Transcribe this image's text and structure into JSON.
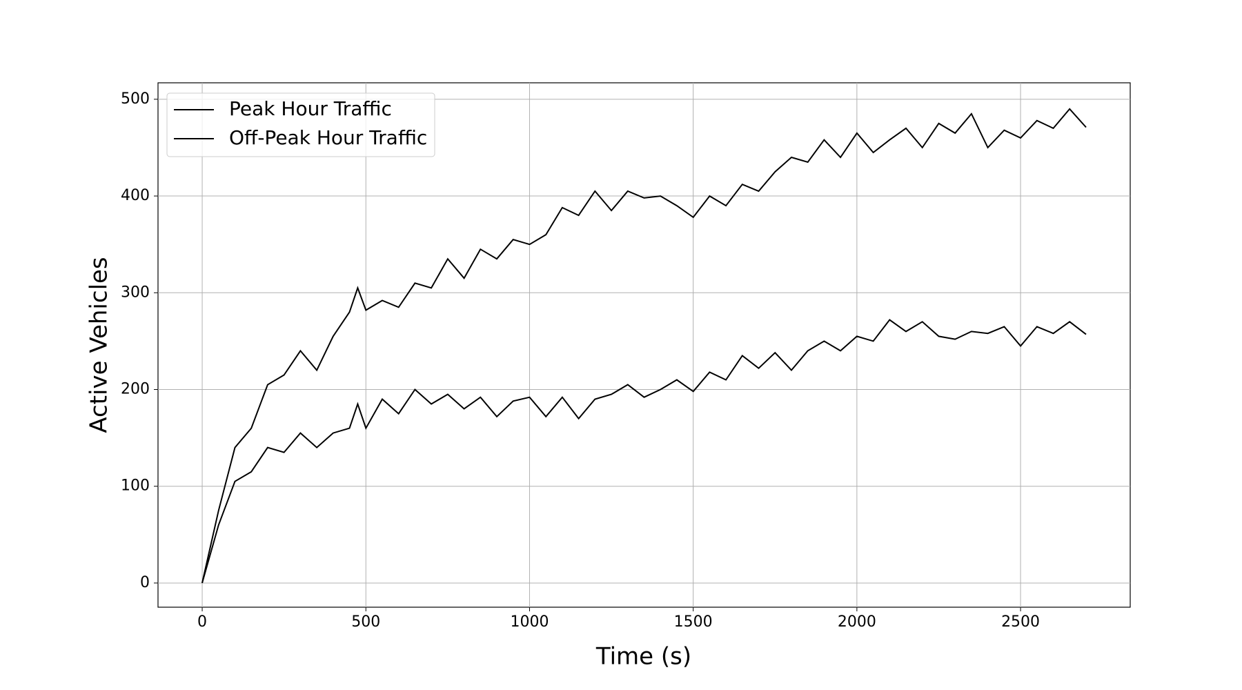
{
  "chart_data": {
    "type": "line",
    "x_label": "Time (s)",
    "y_label": "Active Vehicles",
    "x": [
      0,
      50,
      100,
      150,
      200,
      250,
      300,
      350,
      400,
      450,
      475,
      500,
      550,
      600,
      650,
      700,
      750,
      800,
      850,
      900,
      950,
      1000,
      1050,
      1100,
      1150,
      1200,
      1250,
      1300,
      1350,
      1400,
      1450,
      1500,
      1550,
      1600,
      1650,
      1700,
      1750,
      1800,
      1850,
      1900,
      1950,
      2000,
      2050,
      2100,
      2150,
      2200,
      2250,
      2300,
      2350,
      2400,
      2450,
      2500,
      2550,
      2600,
      2650,
      2700
    ],
    "series": [
      {
        "name": "Peak Hour Traffic",
        "color": "#000000",
        "values": [
          0,
          75,
          140,
          160,
          205,
          215,
          240,
          220,
          255,
          280,
          305,
          282,
          292,
          285,
          310,
          305,
          335,
          315,
          345,
          335,
          355,
          350,
          360,
          388,
          380,
          405,
          385,
          405,
          398,
          400,
          390,
          378,
          400,
          390,
          412,
          405,
          425,
          440,
          435,
          458,
          440,
          465,
          445,
          458,
          470,
          450,
          475,
          465,
          485,
          450,
          468,
          460,
          478,
          470,
          490,
          471
        ]
      },
      {
        "name": "Off-Peak Hour Traffic",
        "color": "#000000",
        "values": [
          0,
          60,
          105,
          115,
          140,
          135,
          155,
          140,
          155,
          160,
          185,
          160,
          190,
          175,
          200,
          185,
          195,
          180,
          192,
          172,
          188,
          192,
          172,
          192,
          170,
          190,
          195,
          205,
          192,
          200,
          210,
          198,
          218,
          210,
          235,
          222,
          238,
          220,
          240,
          250,
          240,
          255,
          250,
          272,
          260,
          270,
          255,
          252,
          260,
          258,
          265,
          245,
          265,
          258,
          270,
          257
        ]
      }
    ],
    "xlim": [
      -135,
      2835
    ],
    "ylim": [
      -25,
      517
    ],
    "xticks": [
      0,
      500,
      1000,
      1500,
      2000,
      2500
    ],
    "yticks": [
      0,
      100,
      200,
      300,
      400,
      500
    ],
    "grid": true,
    "legend": "upper-left"
  }
}
